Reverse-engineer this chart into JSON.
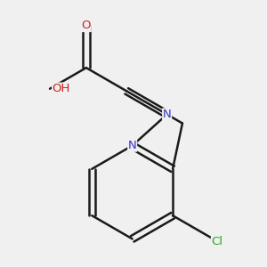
{
  "background_color": "#f0f0f0",
  "bond_color": "#1a1a1a",
  "bond_width": 1.8,
  "atom_labels": {
    "N1": {
      "label": "N",
      "color": "#3333cc"
    },
    "N2": {
      "label": "N",
      "color": "#3333cc"
    },
    "O1": {
      "label": "O",
      "color": "#cc2222"
    },
    "O2": {
      "label": "OH",
      "color": "#cc2222"
    },
    "Cl": {
      "label": "Cl",
      "color": "#22aa22"
    }
  },
  "figsize": [
    3.0,
    3.0
  ],
  "dpi": 100
}
